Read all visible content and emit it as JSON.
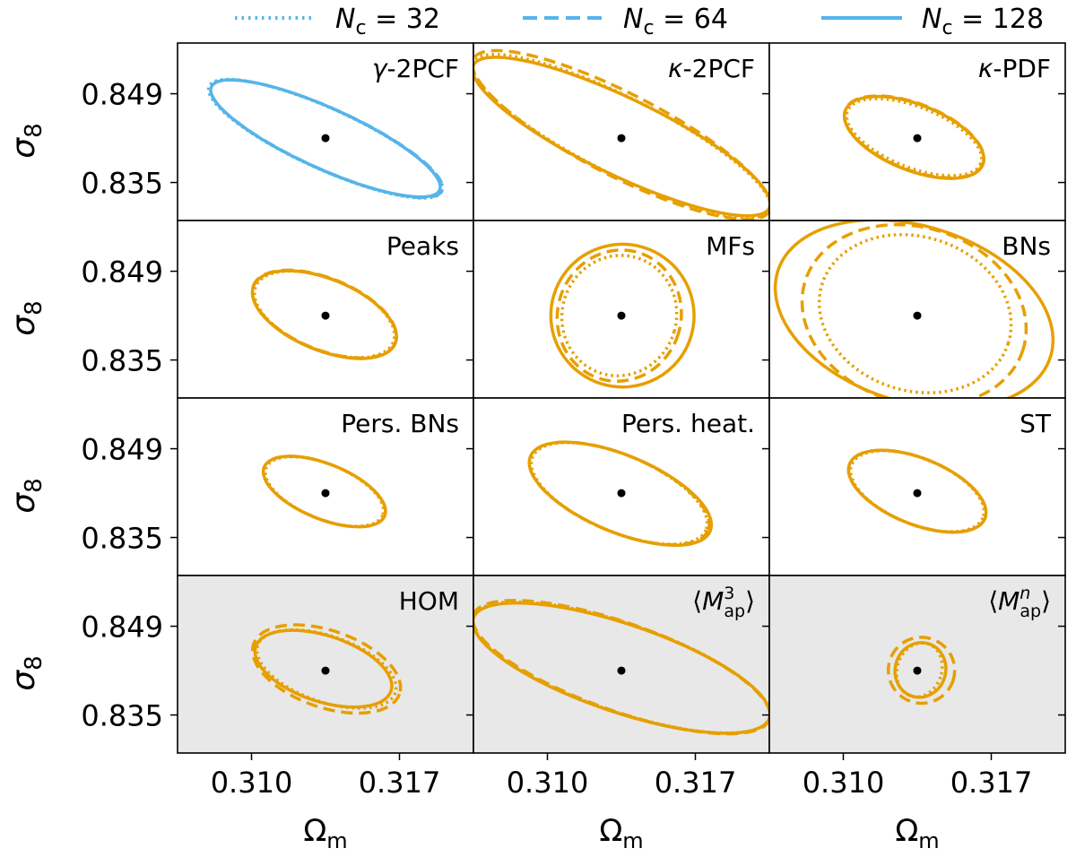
{
  "legend": {
    "entries": [
      {
        "prefix": "N",
        "sub": "c",
        "rest": " = 32",
        "style": "dotted"
      },
      {
        "prefix": "N",
        "sub": "c",
        "rest": " = 64",
        "style": "dashed"
      },
      {
        "prefix": "N",
        "sub": "c",
        "rest": " = 128",
        "style": "solid"
      }
    ],
    "color": "#56B4E9"
  },
  "colors": {
    "blue": "#56B4E9",
    "orange": "#E69F00",
    "shaded_bg": "#E8E8E8",
    "fiducial": "#000000"
  },
  "axes": {
    "ylabel": {
      "main": "σ",
      "sub": "8"
    },
    "xlabel": {
      "main": "Ω",
      "sub": "m"
    },
    "yticks": [
      "0.849",
      "0.835"
    ],
    "xticks": [
      "0.310",
      "0.317"
    ],
    "xlim": [
      0.3065,
      0.3205
    ],
    "ylim": [
      0.829,
      0.857
    ]
  },
  "chart_data": {
    "type": "scatter",
    "description_units": "Omega_m (x) vs sigma_8 (y); Fisher forecast 1-sigma contours for Nc = 32 (dotted), 64 (dashed), 128 (solid)",
    "fiducial": {
      "omega_m": 0.3135,
      "sigma_8": 0.842
    },
    "panels": [
      {
        "label": "γ-2PCF",
        "math": false,
        "color": "blue",
        "shaded": false,
        "contours": [
          {
            "nc": "32",
            "style": "dotted",
            "p1": [
              0.308,
              0.8502
            ],
            "p2": [
              0.319,
              0.8336
            ],
            "w": 0.00055
          },
          {
            "nc": "64",
            "style": "dashed",
            "p1": [
              0.3081,
              0.8501
            ],
            "p2": [
              0.319,
              0.8337
            ],
            "w": 0.00055
          },
          {
            "nc": "128",
            "style": "solid",
            "p1": [
              0.3081,
              0.8501
            ],
            "p2": [
              0.3189,
              0.8338
            ],
            "w": 0.00055
          }
        ]
      },
      {
        "label": "κ-2PCF",
        "math": false,
        "color": "orange",
        "shaded": false,
        "contours": [
          {
            "nc": "32",
            "style": "dotted",
            "p1": [
              0.3065,
              0.854
            ],
            "p2": [
              0.3205,
              0.8306
            ],
            "w": 0.0007
          },
          {
            "nc": "64",
            "style": "dashed",
            "p1": [
              0.3065,
              0.8545
            ],
            "p2": [
              0.3205,
              0.8305
            ],
            "w": 0.00075
          },
          {
            "nc": "128",
            "style": "solid",
            "p1": [
              0.3065,
              0.8535
            ],
            "p2": [
              0.3205,
              0.831
            ],
            "w": 0.0007
          }
        ]
      },
      {
        "label": "κ-PDF",
        "math": false,
        "color": "orange",
        "shaded": false,
        "contours": [
          {
            "nc": "32",
            "style": "dotted",
            "p1": [
              0.3102,
              0.8463
            ],
            "p2": [
              0.3165,
              0.838
            ],
            "w": 0.00055
          },
          {
            "nc": "64",
            "style": "dashed",
            "p1": [
              0.3101,
              0.8465
            ],
            "p2": [
              0.3166,
              0.8379
            ],
            "w": 0.0006
          },
          {
            "nc": "128",
            "style": "solid",
            "p1": [
              0.3101,
              0.8464
            ],
            "p2": [
              0.3166,
              0.8378
            ],
            "w": 0.0006
          }
        ]
      },
      {
        "label": "Peaks",
        "math": false,
        "color": "orange",
        "shaded": false,
        "contours": [
          {
            "nc": "32",
            "style": "dotted",
            "p1": [
              0.3102,
              0.8466
            ],
            "p2": [
              0.3167,
              0.8378
            ],
            "w": 0.00065
          },
          {
            "nc": "64",
            "style": "dashed",
            "p1": [
              0.3101,
              0.8468
            ],
            "p2": [
              0.3168,
              0.8377
            ],
            "w": 0.00065
          },
          {
            "nc": "128",
            "style": "solid",
            "p1": [
              0.3101,
              0.8467
            ],
            "p2": [
              0.3168,
              0.8376
            ],
            "w": 0.00065
          }
        ]
      },
      {
        "label": "MFs",
        "math": false,
        "color": "orange",
        "shaded": false,
        "contours": [
          {
            "nc": "32",
            "style": "dotted",
            "p1": [
              0.3108,
              0.8445
            ],
            "p2": [
              0.316,
              0.8395
            ],
            "w": 0.0011
          },
          {
            "nc": "64",
            "style": "dashed",
            "p1": [
              0.3106,
              0.8448
            ],
            "p2": [
              0.3162,
              0.8392
            ],
            "w": 0.0012
          },
          {
            "nc": "128",
            "style": "solid",
            "p1": [
              0.3103,
              0.8452
            ],
            "p2": [
              0.3168,
              0.8388
            ],
            "w": 0.0013
          }
        ]
      },
      {
        "label": "BNs",
        "math": false,
        "color": "orange",
        "shaded": false,
        "contours": [
          {
            "nc": "32",
            "style": "dotted",
            "p1": [
              0.309,
              0.847
            ],
            "p2": [
              0.3178,
              0.8376
            ],
            "w": 0.0014
          },
          {
            "nc": "64",
            "style": "dashed",
            "p1": [
              0.3082,
              0.8475
            ],
            "p2": [
              0.3185,
              0.8366
            ],
            "w": 0.0016
          },
          {
            "nc": "128",
            "style": "solid",
            "p1": [
              0.3069,
              0.849
            ],
            "p2": [
              0.3198,
              0.8355
            ],
            "w": 0.0016
          }
        ]
      },
      {
        "label": "Pers. BNs",
        "math": false,
        "color": "orange",
        "shaded": false,
        "contours": [
          {
            "nc": "32",
            "style": "dotted",
            "p1": [
              0.3107,
              0.846
            ],
            "p2": [
              0.3162,
              0.8385
            ],
            "w": 0.0005
          },
          {
            "nc": "64",
            "style": "dashed",
            "p1": [
              0.3106,
              0.8461
            ],
            "p2": [
              0.3163,
              0.8384
            ],
            "w": 0.0005
          },
          {
            "nc": "128",
            "style": "solid",
            "p1": [
              0.3106,
              0.8461
            ],
            "p2": [
              0.3163,
              0.8384
            ],
            "w": 0.0005
          }
        ]
      },
      {
        "label": "Pers. heat.",
        "math": false,
        "color": "orange",
        "shaded": false,
        "contours": [
          {
            "nc": "32",
            "style": "dotted",
            "p1": [
              0.3093,
              0.8477
            ],
            "p2": [
              0.3175,
              0.8362
            ],
            "w": 0.0007
          },
          {
            "nc": "64",
            "style": "dashed",
            "p1": [
              0.3092,
              0.8478
            ],
            "p2": [
              0.3176,
              0.8361
            ],
            "w": 0.0007
          },
          {
            "nc": "128",
            "style": "solid",
            "p1": [
              0.3092,
              0.8478
            ],
            "p2": [
              0.3177,
              0.836
            ],
            "w": 0.0007
          }
        ]
      },
      {
        "label": "ST",
        "math": false,
        "color": "orange",
        "shaded": false,
        "contours": [
          {
            "nc": "32",
            "style": "dotted",
            "p1": [
              0.3104,
              0.8465
            ],
            "p2": [
              0.3166,
              0.8381
            ],
            "w": 0.0006
          },
          {
            "nc": "64",
            "style": "dashed",
            "p1": [
              0.3103,
              0.8466
            ],
            "p2": [
              0.3167,
              0.838
            ],
            "w": 0.0006
          },
          {
            "nc": "128",
            "style": "solid",
            "p1": [
              0.3103,
              0.8466
            ],
            "p2": [
              0.3167,
              0.838
            ],
            "w": 0.0006
          }
        ]
      },
      {
        "label": "HOM",
        "math": false,
        "color": "orange",
        "shaded": true,
        "contours": [
          {
            "nc": "32",
            "style": "dotted",
            "p1": [
              0.3103,
              0.846
            ],
            "p2": [
              0.3168,
              0.8385
            ],
            "w": 0.0006
          },
          {
            "nc": "64",
            "style": "dashed",
            "p1": [
              0.3101,
              0.8462
            ],
            "p2": [
              0.317,
              0.8383
            ],
            "w": 0.0007
          },
          {
            "nc": "128",
            "style": "solid",
            "p1": [
              0.3102,
              0.8458
            ],
            "p2": [
              0.3166,
              0.8388
            ],
            "w": 0.0006
          }
        ]
      },
      {
        "label": "⟨M³ap⟩",
        "math": "map3",
        "color": "orange",
        "shaded": true,
        "contours": [
          {
            "nc": "32",
            "style": "dotted",
            "p1": [
              0.3065,
              0.8505
            ],
            "p2": [
              0.3205,
              0.8345
            ],
            "w": 0.0008
          },
          {
            "nc": "64",
            "style": "dashed",
            "p1": [
              0.3065,
              0.8508
            ],
            "p2": [
              0.3205,
              0.8343
            ],
            "w": 0.0008
          },
          {
            "nc": "128",
            "style": "solid",
            "p1": [
              0.3065,
              0.8503
            ],
            "p2": [
              0.3205,
              0.8345
            ],
            "w": 0.0008
          }
        ]
      },
      {
        "label": "⟨Mⁿap⟩",
        "math": "mapn",
        "color": "orange",
        "shaded": true,
        "contours": [
          {
            "nc": "32",
            "style": "dotted",
            "p1": [
              0.3126,
              0.8432
            ],
            "p2": [
              0.3146,
              0.841
            ],
            "w": 0.0005
          },
          {
            "nc": "64",
            "style": "dashed",
            "p1": [
              0.3122,
              0.8436
            ],
            "p2": [
              0.3152,
              0.8405
            ],
            "w": 0.0006
          },
          {
            "nc": "128",
            "style": "solid",
            "p1": [
              0.3125,
              0.8432
            ],
            "p2": [
              0.3148,
              0.841
            ],
            "w": 0.0005
          }
        ]
      }
    ]
  }
}
